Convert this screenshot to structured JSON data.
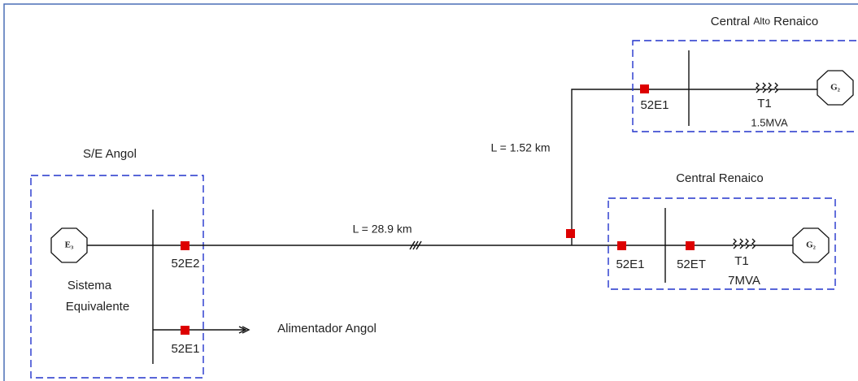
{
  "stations": {
    "se_angol": {
      "title": "S/E Angol",
      "generator": "E₃",
      "source_lines": [
        "Sistema",
        "Equivalente"
      ],
      "breakers": [
        "52E2",
        "52E1"
      ],
      "feeder": "Alimentador Angol"
    },
    "central_renaico": {
      "title": "Central Renaico",
      "breakers": [
        "52E1",
        "52ET"
      ],
      "transformer": "T1",
      "rating": "7MVA",
      "generator": "G₂"
    },
    "central_alto_renaico": {
      "title": [
        "Central",
        "Alto",
        "Renaico"
      ],
      "breaker": "52E1",
      "transformer": "T1",
      "rating": "1.5MVA",
      "generator": "G₂"
    }
  },
  "lines": {
    "main": "L = 28.9  km",
    "branch": "L = 1.52  km"
  }
}
